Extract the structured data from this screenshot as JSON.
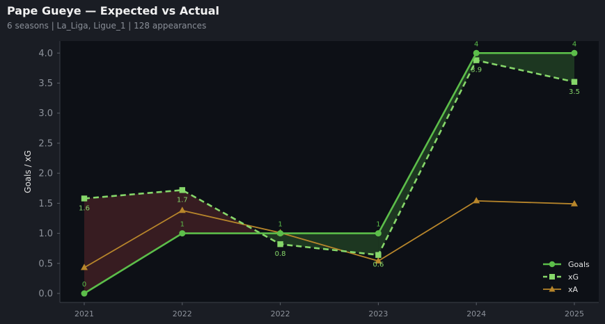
{
  "header": {
    "title": "Pape Gueye — Expected vs Actual",
    "subtitle": "6 seasons | La_Liga, Ligue_1 | 128 appearances"
  },
  "colors": {
    "goals": "#5cbe4a",
    "xg": "#86d76a",
    "xa": "#b8862b",
    "fill_over": "#1f3a22",
    "fill_under": "#3a1e22",
    "plot_bg": "#0d1016",
    "page_bg": "#1a1d24"
  },
  "chart_data": {
    "type": "line",
    "title": "Pape Gueye — Expected vs Actual",
    "ylabel": "Goals / xG",
    "xlabel": "",
    "categories": [
      "2021",
      "2022",
      "2022",
      "2023",
      "2024",
      "2025"
    ],
    "ylim": [
      -0.15,
      4.2
    ],
    "yticks": [
      0.0,
      0.5,
      1.0,
      1.5,
      2.0,
      2.5,
      3.0,
      3.5,
      4.0
    ],
    "ytick_labels": [
      "0.0",
      "0.5",
      "1.0",
      "1.5",
      "2.0",
      "2.5",
      "3.0",
      "3.5",
      "4.0"
    ],
    "series": [
      {
        "name": "Goals",
        "values": [
          0,
          1,
          1,
          1,
          4,
          4
        ],
        "labels": [
          "0",
          "1",
          "1",
          "1",
          "4",
          "4"
        ],
        "marker": "circle",
        "style": "solid"
      },
      {
        "name": "xG",
        "values": [
          1.58,
          1.72,
          0.82,
          0.64,
          3.88,
          3.52
        ],
        "labels": [
          "1.6",
          "1.7",
          "0.8",
          "0.6",
          "3.9",
          "3.5"
        ],
        "marker": "square",
        "style": "dashed"
      },
      {
        "name": "xA",
        "values": [
          0.43,
          1.38,
          1.01,
          0.54,
          1.54,
          1.49
        ],
        "marker": "triangle",
        "style": "solid"
      }
    ],
    "legend": {
      "position": "bottom-right",
      "entries": [
        "Goals",
        "xG",
        "xA"
      ]
    },
    "grid": false
  }
}
